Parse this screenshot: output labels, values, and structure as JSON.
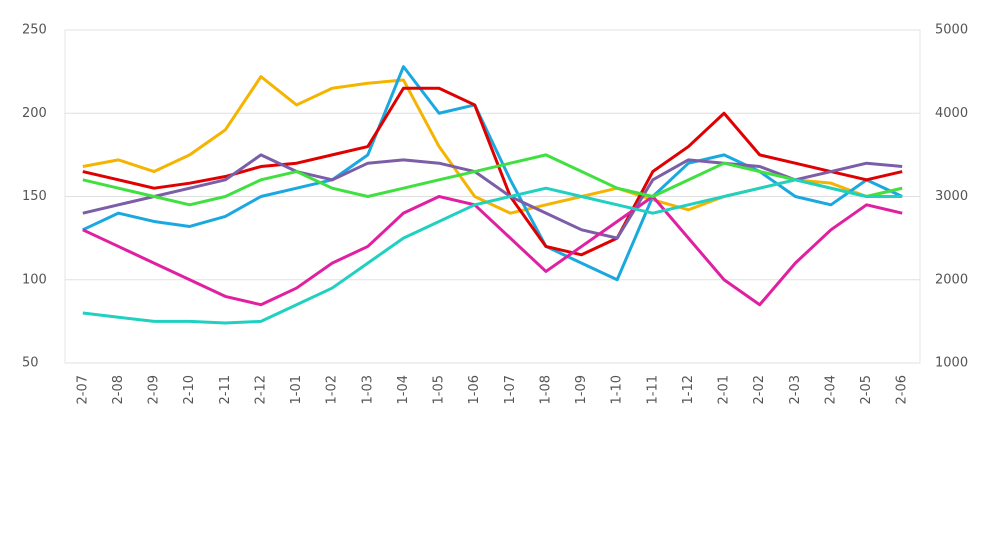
{
  "chart_data": {
    "type": "line",
    "categories": [
      "2-07",
      "2-08",
      "2-09",
      "2-10",
      "2-11",
      "2-12",
      "1-01",
      "1-02",
      "1-03",
      "1-04",
      "1-05",
      "1-06",
      "1-07",
      "1-08",
      "1-09",
      "1-10",
      "1-11",
      "1-12",
      "2-01",
      "2-02",
      "2-03",
      "2-04",
      "2-05",
      "2-06"
    ],
    "ylim": [
      50,
      250
    ],
    "yticks": [
      50,
      100,
      150,
      200,
      250
    ],
    "y2lim": [
      1000,
      5000
    ],
    "y2ticks": [
      1000,
      2000,
      3000,
      4000,
      5000
    ],
    "grid": true,
    "series": [
      {
        "color": "#f5b400",
        "values": [
          168,
          172,
          165,
          175,
          190,
          222,
          205,
          215,
          218,
          220,
          180,
          150,
          140,
          145,
          150,
          155,
          148,
          142,
          150,
          155,
          160,
          158,
          150,
          155
        ]
      },
      {
        "color": "#1aa8e0",
        "values": [
          130,
          140,
          135,
          132,
          138,
          150,
          155,
          160,
          175,
          228,
          200,
          205,
          160,
          120,
          110,
          100,
          150,
          170,
          175,
          165,
          150,
          145,
          160,
          150
        ]
      },
      {
        "color": "#e00000",
        "values": [
          165,
          160,
          155,
          158,
          162,
          168,
          170,
          175,
          180,
          215,
          215,
          205,
          150,
          120,
          115,
          125,
          165,
          180,
          200,
          175,
          170,
          165,
          160,
          165
        ]
      },
      {
        "color": "#7b5ea7",
        "values": [
          140,
          145,
          150,
          155,
          160,
          175,
          165,
          160,
          170,
          172,
          170,
          165,
          150,
          140,
          130,
          125,
          160,
          172,
          170,
          168,
          160,
          165,
          170,
          168
        ]
      },
      {
        "color": "#e020a0",
        "axis": "y2",
        "values": [
          2600,
          2400,
          2200,
          2000,
          1800,
          1700,
          1900,
          2200,
          2400,
          2800,
          3000,
          2900,
          2500,
          2100,
          2400,
          2700,
          3000,
          2500,
          2000,
          1700,
          2200,
          2600,
          2900,
          2800
        ]
      },
      {
        "color": "#40e040",
        "axis": "y2",
        "values": [
          3200,
          3100,
          3000,
          2900,
          3000,
          3200,
          3300,
          3100,
          3000,
          3100,
          3200,
          3300,
          3400,
          3500,
          3300,
          3100,
          3000,
          3200,
          3400,
          3300,
          3200,
          3100,
          3000,
          3100
        ]
      },
      {
        "color": "#20d0c0",
        "axis": "y2",
        "values": [
          1600,
          1550,
          1500,
          1500,
          1480,
          1500,
          1700,
          1900,
          2200,
          2500,
          2700,
          2900,
          3000,
          3100,
          3000,
          2900,
          2800,
          2900,
          3000,
          3100,
          3200,
          3100,
          3000,
          3000
        ]
      }
    ]
  }
}
